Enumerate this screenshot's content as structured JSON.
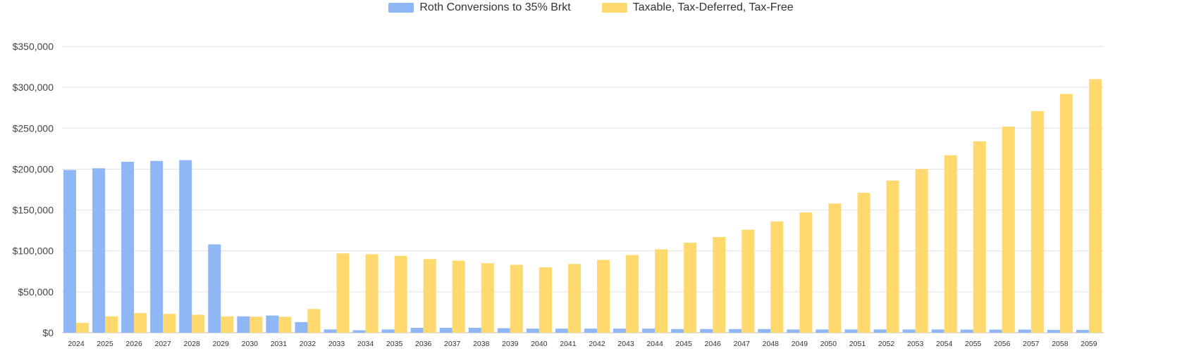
{
  "chart_data": {
    "type": "bar",
    "legend_position": "top-center",
    "grid": true,
    "ylim": [
      0,
      350000
    ],
    "yticks": [
      "$0",
      "$50,000",
      "$100,000",
      "$150,000",
      "$200,000",
      "$250,000",
      "$300,000",
      "$350,000"
    ],
    "categories": [
      "2024",
      "2025",
      "2026",
      "2027",
      "2028",
      "2029",
      "2030",
      "2031",
      "2032",
      "2033",
      "2034",
      "2035",
      "2036",
      "2037",
      "2038",
      "2039",
      "2040",
      "2041",
      "2042",
      "2043",
      "2044",
      "2045",
      "2046",
      "2047",
      "2048",
      "2049",
      "2050",
      "2051",
      "2052",
      "2053",
      "2054",
      "2055",
      "2056",
      "2057",
      "2058",
      "2059"
    ],
    "series": [
      {
        "name": "Roth Conversions to 35% Brkt",
        "color": "#8fb7f5",
        "values": [
          199000,
          201000,
          209000,
          210000,
          211000,
          108000,
          20000,
          21000,
          13000,
          4000,
          3000,
          4000,
          6000,
          6000,
          6000,
          5500,
          5000,
          5000,
          5000,
          5000,
          5000,
          4500,
          4500,
          4500,
          4500,
          4000,
          4000,
          4000,
          4000,
          4000,
          4000,
          3800,
          3800,
          3800,
          3500,
          3500
        ]
      },
      {
        "name": "Taxable, Tax-Deferred, Tax-Free",
        "color": "#ffd86e",
        "values": [
          12000,
          20000,
          24000,
          23000,
          22000,
          20000,
          19500,
          19500,
          29000,
          97000,
          96000,
          94000,
          90000,
          88000,
          85000,
          83000,
          80000,
          84000,
          89000,
          95000,
          102000,
          110000,
          117000,
          126000,
          136000,
          147000,
          158000,
          171000,
          186000,
          200000,
          217000,
          234000,
          252000,
          271000,
          292000,
          310000
        ]
      }
    ]
  }
}
